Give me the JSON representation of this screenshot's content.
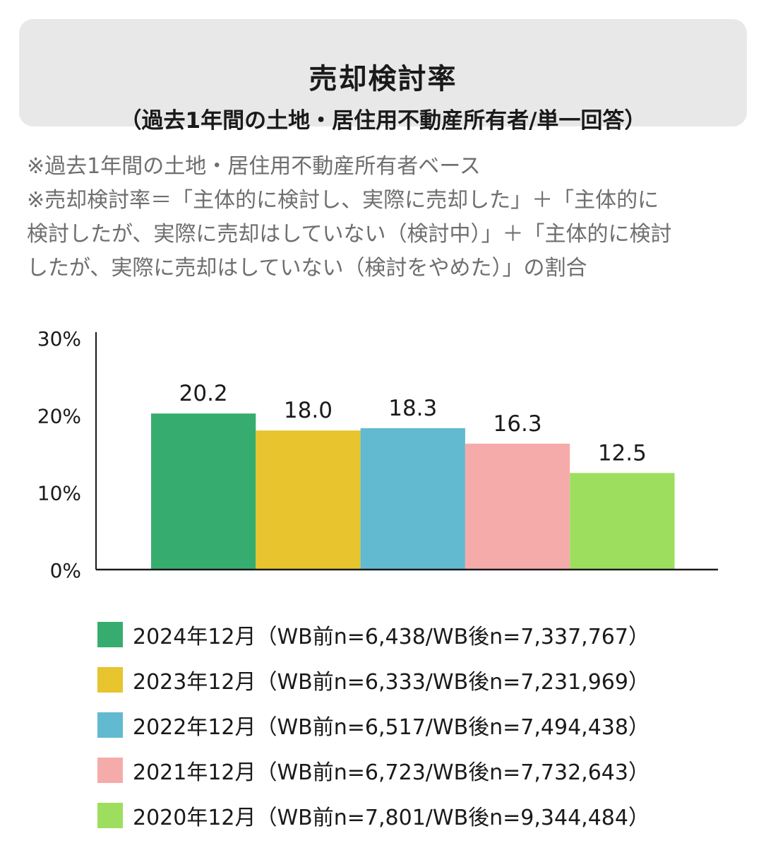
{
  "header": {
    "title": "売却検討率",
    "subtitle": "（過去1年間の土地・居住用不動産所有者/単一回答）"
  },
  "notes": [
    "※過去1年間の土地・居住用不動産所有者ベース",
    "※売却検討率＝「主体的に検討し、実際に売却した」＋「主体的に",
    "検討したが、実際に売却はしていない（検討中）」＋「主体的に検討",
    "したが、実際に売却はしていない（検討をやめた）」の割合"
  ],
  "chart_data": {
    "type": "bar",
    "yticks": [
      "0%",
      "10%",
      "20%",
      "30%"
    ],
    "ylim": [
      0,
      30
    ],
    "grid": false,
    "legend_position": "bottom",
    "series": [
      {
        "name": "2024年12月（WB前n=6,438/WB後n=7,337,767）",
        "value": 20.2,
        "label": "20.2",
        "color": "#36ad6f"
      },
      {
        "name": "2023年12月（WB前n=6,333/WB後n=7,231,969）",
        "value": 18.0,
        "label": "18.0",
        "color": "#e8c42e"
      },
      {
        "name": "2022年12月（WB前n=6,517/WB後n=7,494,438）",
        "value": 18.3,
        "label": "18.3",
        "color": "#62bad0"
      },
      {
        "name": "2021年12月（WB前n=6,723/WB後n=7,732,643）",
        "value": 16.3,
        "label": "16.3",
        "color": "#f6abab"
      },
      {
        "name": "2020年12月（WB前n=7,801/WB後n=9,344,484）",
        "value": 12.5,
        "label": "12.5",
        "color": "#9ede5e"
      }
    ]
  }
}
